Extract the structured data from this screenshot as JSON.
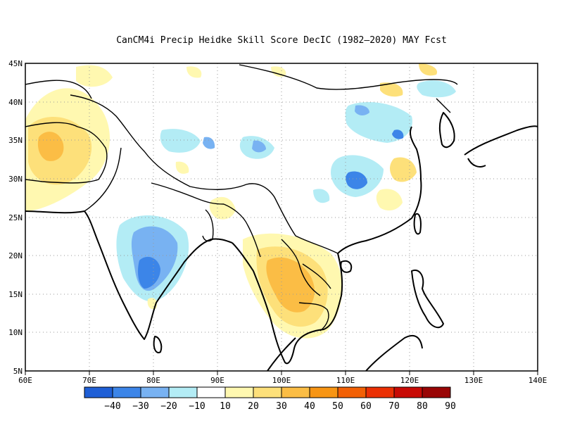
{
  "title": "CanCM4i Precip Heidke Skill Score DecIC (1982–2020) MAY Fcst",
  "map": {
    "lon_range": [
      60,
      140
    ],
    "lat_range": [
      5,
      45
    ],
    "x_ticks": [
      "60E",
      "70E",
      "80E",
      "90E",
      "100E",
      "110E",
      "120E",
      "130E",
      "140E"
    ],
    "y_ticks": [
      "45N",
      "40N",
      "35N",
      "30N",
      "25N",
      "20N",
      "15N",
      "10N",
      "5N"
    ],
    "gridlines": "dotted"
  },
  "colorbar": {
    "colors": [
      "#1f5fd6",
      "#3c85e8",
      "#78b2f2",
      "#b3ecf5",
      "#ffffff",
      "#fff8b0",
      "#fde07a",
      "#fbbd45",
      "#f79514",
      "#f26005",
      "#eb3004",
      "#c80a05",
      "#990505"
    ],
    "labels": [
      "−40",
      "−30",
      "−20",
      "−10",
      "10",
      "20",
      "30",
      "40",
      "50",
      "60",
      "70",
      "80",
      "90"
    ]
  },
  "chart_data": {
    "type": "heatmap",
    "title": "CanCM4i Precip Heidke Skill Score DecIC (1982–2020) MAY Fcst",
    "x_range": [
      60,
      140
    ],
    "y_range": [
      5,
      45
    ],
    "regions": [
      {
        "lon": [
          60,
          72
        ],
        "lat": [
          27,
          38
        ],
        "value": 25
      },
      {
        "lon": [
          62,
          67
        ],
        "lat": [
          31,
          35
        ],
        "value": 35
      },
      {
        "lon": [
          79,
          84
        ],
        "lat": [
          15,
          22
        ],
        "value": -25
      },
      {
        "lon": [
          95,
          108
        ],
        "lat": [
          11,
          20
        ],
        "value": 35
      },
      {
        "lon": [
          100,
          104
        ],
        "lat": [
          28,
          31
        ],
        "value": -25
      },
      {
        "lon": [
          104,
          110
        ],
        "lat": [
          33,
          37
        ],
        "value": -15
      },
      {
        "lon": [
          113,
          117
        ],
        "lat": [
          27,
          32
        ],
        "value": 20
      }
    ]
  }
}
